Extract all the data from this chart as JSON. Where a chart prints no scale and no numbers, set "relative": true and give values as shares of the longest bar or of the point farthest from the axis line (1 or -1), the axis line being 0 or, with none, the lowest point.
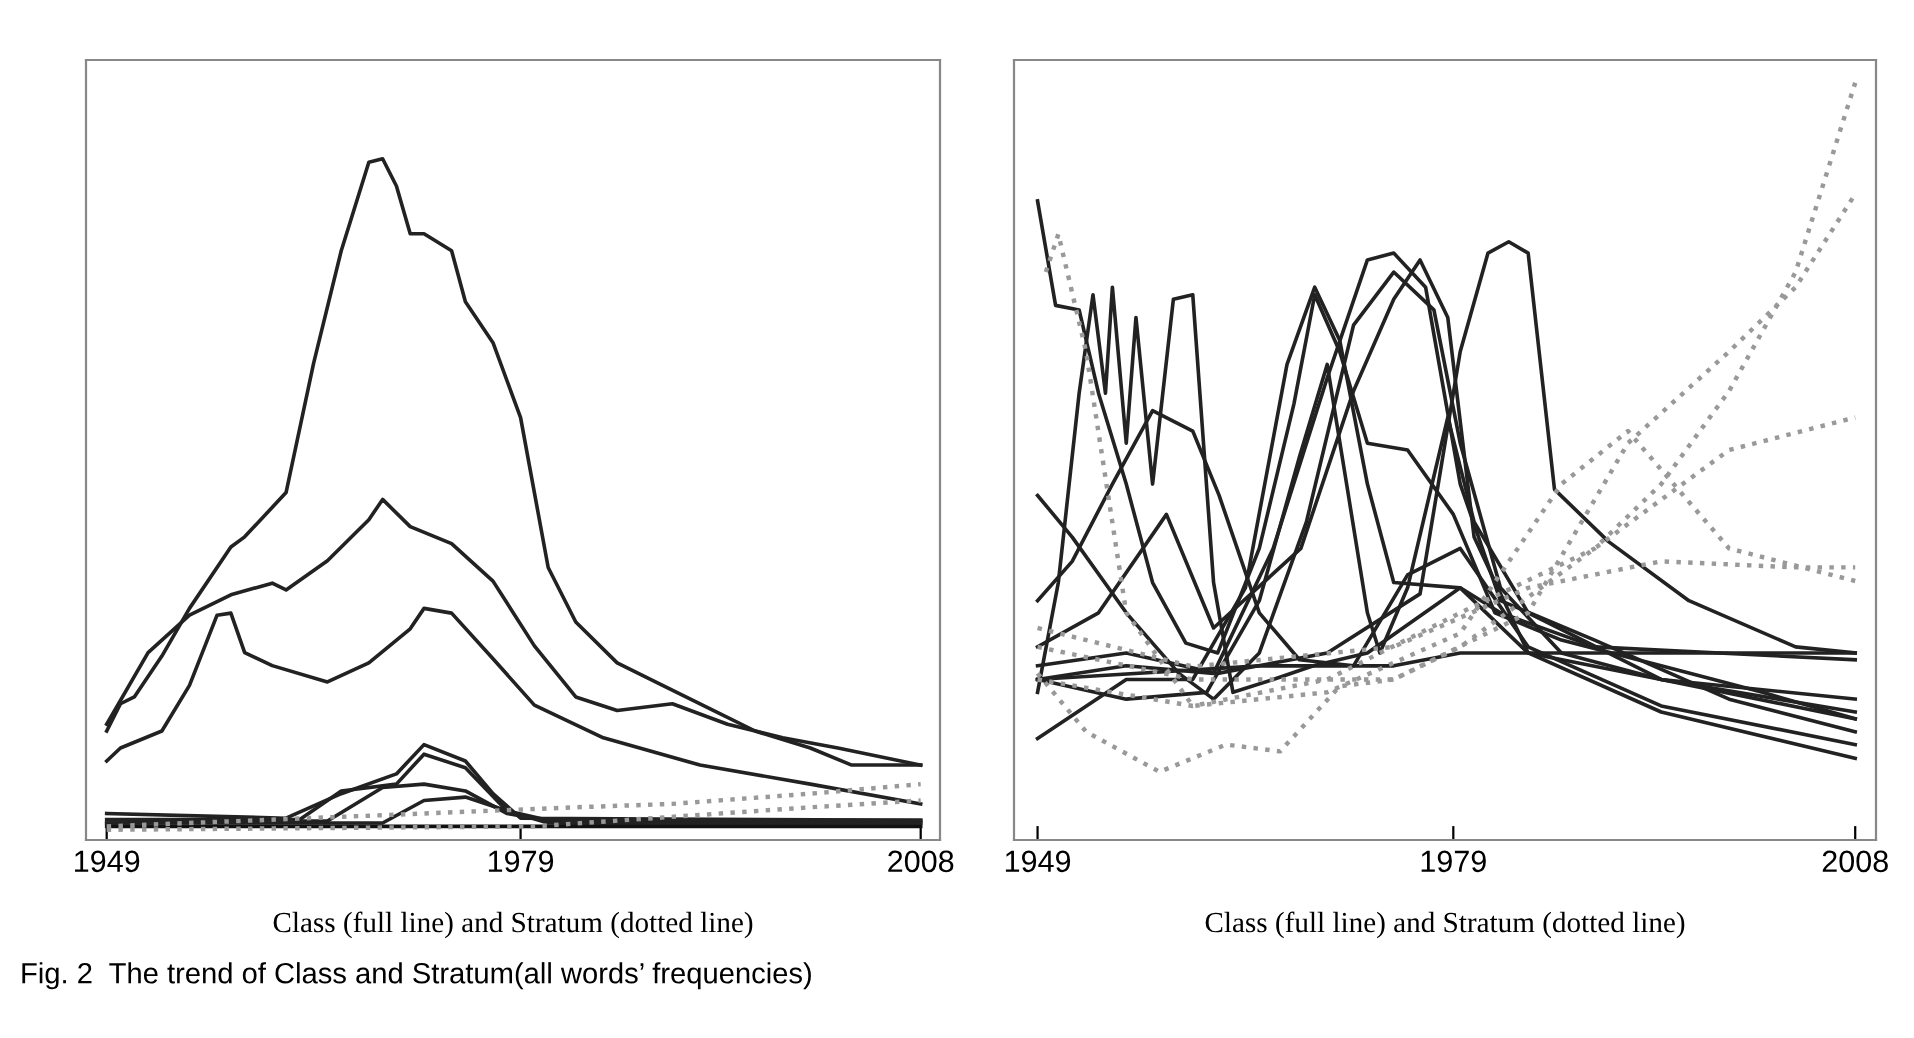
{
  "chart_data": [
    {
      "type": "line",
      "relative": true,
      "xlabel": "Class (full line) and Stratum (dotted line)",
      "xlim": [
        1947.5,
        2009.4
      ],
      "xticks": [
        1949,
        1979,
        2008
      ],
      "tick_labels": "x",
      "grid": false,
      "marker": "none",
      "annotations": [
        "Fig. 2  The trend of Class and Stratum(all words’ frequencies)"
      ],
      "series": [
        {
          "color": "#222222",
          "line_style": "solid",
          "x": [
            1949,
            1950,
            1951,
            1953,
            1955,
            1958,
            1959,
            1962,
            1964,
            1966,
            1968,
            1969,
            1970,
            1971,
            1972,
            1974,
            1975,
            1977,
            1979,
            1980,
            1981,
            1983,
            1986,
            1989,
            1993,
            1996,
            2000,
            2003,
            2008
          ],
          "values": [
            0.16,
            0.2,
            0.21,
            0.27,
            0.34,
            0.43,
            0.445,
            0.51,
            0.7,
            0.865,
            0.995,
            1.0,
            0.96,
            0.89,
            0.89,
            0.865,
            0.79,
            0.73,
            0.62,
            0.51,
            0.4,
            0.32,
            0.26,
            0.23,
            0.19,
            0.16,
            0.135,
            0.11,
            0.11
          ]
        },
        {
          "color": "#222222",
          "line_style": "solid",
          "x": [
            1949,
            1952,
            1955,
            1958,
            1961,
            1962,
            1965,
            1968,
            1969,
            1971,
            1974,
            1977,
            1980,
            1983,
            1986,
            1990,
            1994,
            1998,
            2002,
            2008
          ],
          "values": [
            0.17,
            0.275,
            0.33,
            0.36,
            0.377,
            0.367,
            0.41,
            0.47,
            0.5,
            0.46,
            0.435,
            0.38,
            0.285,
            0.21,
            0.19,
            0.2,
            0.17,
            0.15,
            0.135,
            0.11
          ]
        },
        {
          "color": "#222222",
          "line_style": "solid",
          "x": [
            1949,
            1950,
            1953,
            1955,
            1957,
            1958,
            1959,
            1961,
            1965,
            1968,
            1971,
            1972,
            1974,
            1977,
            1980,
            1985,
            1992,
            2000,
            2008
          ],
          "values": [
            0.116,
            0.135,
            0.16,
            0.227,
            0.33,
            0.333,
            0.275,
            0.256,
            0.232,
            0.26,
            0.31,
            0.34,
            0.333,
            0.266,
            0.198,
            0.15,
            0.11,
            0.082,
            0.053
          ]
        },
        {
          "color": "#222222",
          "line_style": "solid",
          "x": [
            1949,
            1962,
            1966,
            1970,
            1972,
            1975,
            1977,
            1979,
            2008
          ],
          "values": [
            0.039,
            0.032,
            0.068,
            0.097,
            0.14,
            0.116,
            0.068,
            0.032,
            0.029
          ]
        },
        {
          "color": "#222222",
          "line_style": "solid",
          "x": [
            1949,
            1963,
            1966,
            1970,
            1972,
            1975,
            1978,
            1981,
            2008
          ],
          "values": [
            0.03,
            0.03,
            0.072,
            0.082,
            0.126,
            0.106,
            0.043,
            0.029,
            0.029
          ]
        },
        {
          "color": "#222222",
          "line_style": "solid",
          "x": [
            1949,
            1965,
            1969,
            1972,
            1975,
            1978,
            1982,
            2008
          ],
          "values": [
            0.025,
            0.028,
            0.077,
            0.082,
            0.072,
            0.039,
            0.025,
            0.025
          ]
        },
        {
          "color": "#222222",
          "line_style": "solid",
          "x": [
            1949,
            1969,
            1972,
            1975,
            1978,
            1981,
            2008
          ],
          "values": [
            0.025,
            0.025,
            0.058,
            0.063,
            0.043,
            0.025,
            0.025
          ]
        },
        {
          "color": "#111111",
          "line_style": "solid",
          "x": [
            1949,
            2008
          ],
          "values": [
            0.02,
            0.02
          ]
        },
        {
          "color": "#999999",
          "line_style": "dotted",
          "x": [
            1949,
            1983,
            1990,
            2000,
            2008
          ],
          "values": [
            0.02,
            0.048,
            0.053,
            0.068,
            0.082
          ]
        },
        {
          "color": "#999999",
          "line_style": "dotted",
          "x": [
            1949,
            1980,
            2000,
            2008
          ],
          "values": [
            0.015,
            0.02,
            0.048,
            0.058
          ]
        }
      ]
    },
    {
      "type": "line",
      "relative": true,
      "xlabel": "Class (full line) and Stratum (dotted line)",
      "xlim": [
        1947.3,
        2009.5
      ],
      "xticks": [
        1949,
        1979,
        2008
      ],
      "tick_labels": "x",
      "grid": false,
      "marker": "none",
      "series": [
        {
          "color": "#222222",
          "line_style": "solid",
          "x": [
            1949,
            1950.3,
            1952,
            1953.4,
            1955.4,
            1957.3,
            1959.7,
            1962,
            1965,
            1967.5,
            1969,
            1970.8,
            1972.8,
            1975.7,
            1979,
            1982,
            1986.8,
            1994,
            2001.3,
            2008
          ],
          "values": [
            0.844,
            0.706,
            0.7,
            0.59,
            0.47,
            0.34,
            0.26,
            0.247,
            0.385,
            0.576,
            0.72,
            0.645,
            0.524,
            0.515,
            0.43,
            0.3,
            0.264,
            0.23,
            0.195,
            0.16
          ]
        },
        {
          "color": "#222222",
          "line_style": "solid",
          "x": [
            1949,
            1955.4,
            1962,
            1969.9,
            1976.6,
            1979.5,
            1981.5,
            1983,
            1984.4,
            1986.3,
            1990.2,
            1996,
            2003.7,
            2008
          ],
          "values": [
            0.23,
            0.247,
            0.22,
            0.247,
            0.325,
            0.645,
            0.775,
            0.79,
            0.775,
            0.463,
            0.394,
            0.316,
            0.255,
            0.247
          ]
        },
        {
          "color": "#222222",
          "line_style": "solid",
          "x": [
            1949,
            1955.4,
            1960.2,
            1964,
            1967,
            1969,
            1970.8,
            1972.8,
            1974.7,
            1979.5,
            1984.4,
            1994,
            2008
          ],
          "values": [
            0.134,
            0.212,
            0.212,
            0.333,
            0.628,
            0.73,
            0.66,
            0.47,
            0.34,
            0.333,
            0.247,
            0.169,
            0.108
          ]
        },
        {
          "color": "#222222",
          "line_style": "solid",
          "x": [
            1949,
            1955.4,
            1961.7,
            1966,
            1969.9,
            1972.8,
            1974.7,
            1977,
            1979.5,
            1982.4,
            1989.2,
            1998.9,
            2008
          ],
          "values": [
            0.212,
            0.23,
            0.22,
            0.385,
            0.61,
            0.766,
            0.775,
            0.73,
            0.47,
            0.316,
            0.264,
            0.186,
            0.143
          ]
        },
        {
          "color": "#222222",
          "line_style": "solid",
          "x": [
            1949,
            1953.4,
            1958.3,
            1961.7,
            1968,
            1971.8,
            1974.7,
            1976.6,
            1978.6,
            1980.5,
            1984.4,
            1994,
            2008
          ],
          "values": [
            0.255,
            0.3,
            0.43,
            0.28,
            0.385,
            0.593,
            0.714,
            0.766,
            0.69,
            0.4,
            0.247,
            0.212,
            0.169
          ]
        },
        {
          "color": "#222222",
          "line_style": "solid",
          "x": [
            1949,
            1950.5,
            1952,
            1953,
            1953.9,
            1954.4,
            1955.4,
            1956.1,
            1957.3,
            1958.8,
            1960.2,
            1961.7,
            1963.1,
            1966,
            1968.9,
            1972.8,
            1979.5,
            1982.4,
            1989.2,
            2008
          ],
          "values": [
            0.195,
            0.34,
            0.59,
            0.72,
            0.59,
            0.73,
            0.524,
            0.69,
            0.47,
            0.714,
            0.72,
            0.34,
            0.195,
            0.212,
            0.23,
            0.247,
            0.333,
            0.3,
            0.255,
            0.238
          ]
        },
        {
          "color": "#222222",
          "line_style": "solid",
          "x": [
            1949,
            1951.5,
            1954.4,
            1957.3,
            1960.2,
            1962.1,
            1965,
            1967.9,
            1971.8,
            1975.7,
            1979.5,
            1984.4,
            1994,
            2008
          ],
          "values": [
            0.316,
            0.368,
            0.47,
            0.567,
            0.54,
            0.455,
            0.3,
            0.238,
            0.23,
            0.35,
            0.385,
            0.255,
            0.177,
            0.126
          ]
        },
        {
          "color": "#222222",
          "line_style": "solid",
          "x": [
            1949,
            1955.4,
            1961.2,
            1965,
            1967.9,
            1969.9,
            1971.3,
            1972.8,
            1973.7,
            1975.7,
            1978.6,
            1980.5,
            1984.4,
            1994,
            2008
          ],
          "values": [
            0.212,
            0.186,
            0.195,
            0.316,
            0.506,
            0.628,
            0.47,
            0.3,
            0.247,
            0.333,
            0.558,
            0.42,
            0.3,
            0.212,
            0.16
          ]
        },
        {
          "color": "#222222",
          "line_style": "solid",
          "x": [
            1949,
            1951.5,
            1955.4,
            1959.2,
            1961.7,
            1965,
            1968.4,
            1971.8,
            1974.7,
            1977.6,
            1979.5,
            1982.4,
            1986.8,
            1994,
            2008
          ],
          "values": [
            0.455,
            0.4,
            0.3,
            0.22,
            0.186,
            0.247,
            0.42,
            0.68,
            0.75,
            0.7,
            0.524,
            0.333,
            0.247,
            0.212,
            0.186
          ]
        },
        {
          "color": "#222222",
          "line_style": "solid",
          "x": [
            1949,
            1965,
            1974.7,
            1979.5,
            2008
          ],
          "values": [
            0.212,
            0.23,
            0.23,
            0.247,
            0.247
          ]
        },
        {
          "color": "#999999",
          "line_style": "dotted",
          "x": [
            1949,
            1960.2,
            1969.9,
            1979.5,
            1989.2,
            1994,
            1998.9,
            2003.7,
            2008
          ],
          "values": [
            0.212,
            0.177,
            0.212,
            0.3,
            0.385,
            0.47,
            0.593,
            0.75,
            1.0
          ]
        },
        {
          "color": "#999999",
          "line_style": "dotted",
          "x": [
            1949,
            1960.2,
            1974.7,
            1984.4,
            1991.6,
            1998.9,
            2003.7,
            2008
          ],
          "values": [
            0.255,
            0.212,
            0.212,
            0.3,
            0.524,
            0.645,
            0.73,
            0.853
          ]
        },
        {
          "color": "#999999",
          "line_style": "dotted",
          "x": [
            1949.6,
            1950.5,
            1952.5,
            1955.4,
            1960.2,
            1969.9,
            1979.5,
            1986.8,
            1991.6,
            1998.9,
            2008
          ],
          "values": [
            0.75,
            0.8,
            0.645,
            0.3,
            0.177,
            0.195,
            0.273,
            0.47,
            0.54,
            0.385,
            0.342
          ]
        },
        {
          "color": "#999999",
          "line_style": "dotted",
          "x": [
            1949,
            1952.5,
            1957.8,
            1962.6,
            1966.5,
            1970.8,
            1974.7,
            1979.5,
            1989.2,
            1998.9,
            2008
          ],
          "values": [
            0.22,
            0.143,
            0.09,
            0.126,
            0.117,
            0.203,
            0.212,
            0.255,
            0.385,
            0.515,
            0.558
          ]
        },
        {
          "color": "#999999",
          "line_style": "dotted",
          "x": [
            1949,
            1960.2,
            1974.7,
            1984.4,
            1994,
            2003.7,
            2008
          ],
          "values": [
            0.28,
            0.229,
            0.255,
            0.333,
            0.368,
            0.36,
            0.36
          ]
        }
      ]
    }
  ]
}
